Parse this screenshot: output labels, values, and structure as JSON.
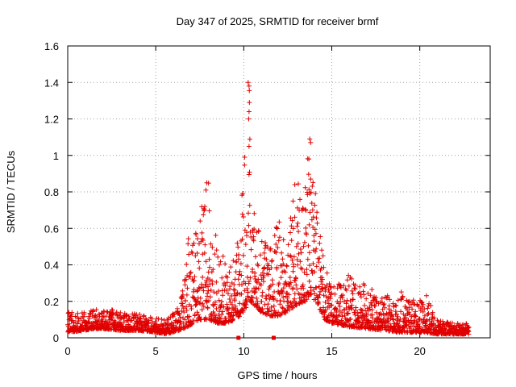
{
  "chart_data": {
    "type": "scatter",
    "title": "Day 347 of 2025, SRMTID for receiver brmf",
    "xlabel": "GPS time / hours",
    "ylabel": "SRMTID / TECUs",
    "xlim": [
      0,
      24
    ],
    "ylim": [
      0,
      1.6
    ],
    "xticks": [
      0,
      5,
      10,
      15,
      20
    ],
    "yticks": [
      0,
      0.2,
      0.4,
      0.6,
      0.8,
      1,
      1.2,
      1.4,
      1.6
    ],
    "ytick_labels": [
      "0",
      "0.2",
      "0.4",
      "0.6",
      "0.8",
      "1",
      "1.2",
      "1.4",
      "1.6"
    ],
    "grid": true,
    "marker": "plus",
    "marker_color": "#e00000",
    "outlier_marker": "square",
    "outliers": [
      [
        9.7,
        0.0
      ],
      [
        11.7,
        0.0
      ]
    ],
    "series_density_profile": [
      [
        0.0,
        0.03,
        0.14
      ],
      [
        1.0,
        0.04,
        0.14
      ],
      [
        1.5,
        0.05,
        0.17
      ],
      [
        2.0,
        0.05,
        0.17
      ],
      [
        3.0,
        0.04,
        0.14
      ],
      [
        4.0,
        0.04,
        0.13
      ],
      [
        5.0,
        0.03,
        0.11
      ],
      [
        5.6,
        0.02,
        0.1
      ],
      [
        6.3,
        0.04,
        0.17
      ],
      [
        6.8,
        0.06,
        0.55
      ],
      [
        7.5,
        0.1,
        0.7
      ],
      [
        8.0,
        0.1,
        0.86
      ],
      [
        8.5,
        0.08,
        0.55
      ],
      [
        9.0,
        0.08,
        0.4
      ],
      [
        9.5,
        0.1,
        0.45
      ],
      [
        9.8,
        0.12,
        0.8
      ],
      [
        10.1,
        0.16,
        1.0
      ],
      [
        10.3,
        0.2,
        1.41
      ],
      [
        10.6,
        0.18,
        0.7
      ],
      [
        11.0,
        0.14,
        0.55
      ],
      [
        11.5,
        0.12,
        0.5
      ],
      [
        12.0,
        0.12,
        0.65
      ],
      [
        12.5,
        0.14,
        0.6
      ],
      [
        13.0,
        0.18,
        0.85
      ],
      [
        13.5,
        0.2,
        0.95
      ],
      [
        13.8,
        0.24,
        1.1
      ],
      [
        14.2,
        0.18,
        0.65
      ],
      [
        14.6,
        0.1,
        0.4
      ],
      [
        15.0,
        0.08,
        0.28
      ],
      [
        16.0,
        0.06,
        0.35
      ],
      [
        17.0,
        0.05,
        0.3
      ],
      [
        18.0,
        0.04,
        0.22
      ],
      [
        18.8,
        0.03,
        0.29
      ],
      [
        19.5,
        0.03,
        0.2
      ],
      [
        20.3,
        0.03,
        0.25
      ],
      [
        21.0,
        0.02,
        0.1
      ],
      [
        22.0,
        0.02,
        0.08
      ],
      [
        22.8,
        0.02,
        0.08
      ]
    ]
  }
}
